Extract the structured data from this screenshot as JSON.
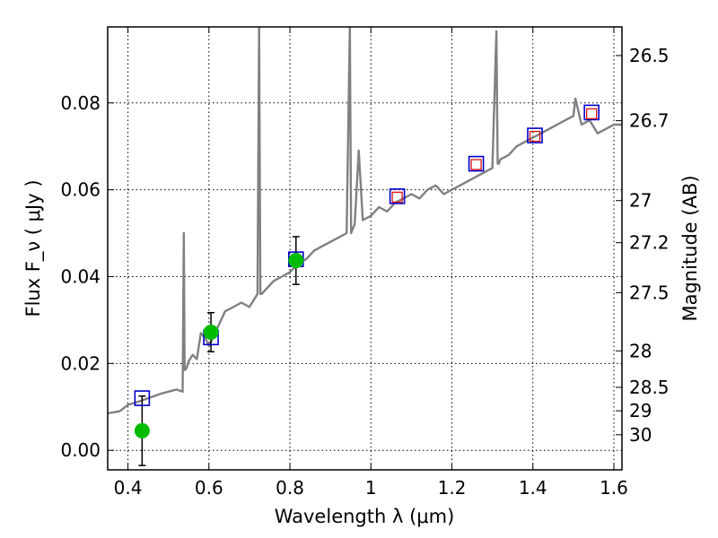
{
  "chart_data": {
    "type": "scatter",
    "xlabel": "Wavelength  λ (μm)",
    "ylabel": "Flux  F_ν  ( μJy )",
    "y2label": "Magnitude (AB)",
    "xlim": [
      0.35,
      1.62
    ],
    "ylim": [
      -0.0045,
      0.0975
    ],
    "grid": true,
    "x_ticks": [
      {
        "value": 0.4,
        "label": "0.4"
      },
      {
        "value": 0.6,
        "label": "0.6"
      },
      {
        "value": 0.8,
        "label": "0.8"
      },
      {
        "value": 1.0,
        "label": "1"
      },
      {
        "value": 1.2,
        "label": "1.2"
      },
      {
        "value": 1.4,
        "label": "1.4"
      },
      {
        "value": 1.6,
        "label": "1.6"
      }
    ],
    "y_ticks": [
      {
        "value": 0.0,
        "label": "0.00"
      },
      {
        "value": 0.02,
        "label": "0.02"
      },
      {
        "value": 0.04,
        "label": "0.04"
      },
      {
        "value": 0.06,
        "label": "0.06"
      },
      {
        "value": 0.08,
        "label": "0.08"
      }
    ],
    "y2_ticks": [
      {
        "flux": 0.0909,
        "label": "26.5"
      },
      {
        "flux": 0.0759,
        "label": "26.7"
      },
      {
        "flux": 0.0575,
        "label": "27"
      },
      {
        "flux": 0.0478,
        "label": "27.2"
      },
      {
        "flux": 0.0363,
        "label": "27.5"
      },
      {
        "flux": 0.0229,
        "label": "28"
      },
      {
        "flux": 0.0145,
        "label": "28.5"
      },
      {
        "flux": 0.0091,
        "label": "29"
      },
      {
        "flux": 0.0036,
        "label": "30"
      }
    ],
    "colors": {
      "sed": "#808080",
      "observed": "#00bb00",
      "model_blue": "#0000cc",
      "model_red": "#dd0000",
      "errorbar": "#000000"
    },
    "series": [
      {
        "type": "line",
        "x": [
          0.35,
          0.38,
          0.4,
          0.42,
          0.45,
          0.48,
          0.5,
          0.52,
          0.535,
          0.538,
          0.54,
          0.541,
          0.545,
          0.55,
          0.56,
          0.57,
          0.58,
          0.59,
          0.6,
          0.62,
          0.64,
          0.66,
          0.68,
          0.7,
          0.72,
          0.724,
          0.727,
          0.73,
          0.74,
          0.76,
          0.78,
          0.8,
          0.82,
          0.84,
          0.86,
          0.88,
          0.9,
          0.92,
          0.94,
          0.948,
          0.951,
          0.955,
          0.96,
          0.97,
          0.98,
          1.0,
          1.02,
          1.04,
          1.06,
          1.08,
          1.1,
          1.12,
          1.14,
          1.16,
          1.18,
          1.2,
          1.22,
          1.24,
          1.26,
          1.28,
          1.3,
          1.31,
          1.313,
          1.316,
          1.32,
          1.34,
          1.36,
          1.38,
          1.4,
          1.42,
          1.44,
          1.46,
          1.48,
          1.5,
          1.505,
          1.51,
          1.52,
          1.54,
          1.56,
          1.58,
          1.6,
          1.62
        ],
        "y": [
          0.0085,
          0.009,
          0.0105,
          0.011,
          0.012,
          0.013,
          0.0135,
          0.014,
          0.0135,
          0.05,
          0.0185,
          0.0185,
          0.019,
          0.0205,
          0.022,
          0.021,
          0.027,
          0.026,
          0.024,
          0.028,
          0.032,
          0.033,
          0.034,
          0.033,
          0.036,
          0.0975,
          0.036,
          0.036,
          0.037,
          0.039,
          0.04,
          0.041,
          0.043,
          0.044,
          0.046,
          0.047,
          0.048,
          0.049,
          0.05,
          0.0975,
          0.05,
          0.051,
          0.052,
          0.069,
          0.053,
          0.054,
          0.056,
          0.055,
          0.057,
          0.058,
          0.059,
          0.058,
          0.06,
          0.061,
          0.059,
          0.06,
          0.061,
          0.062,
          0.063,
          0.064,
          0.065,
          0.0965,
          0.066,
          0.066,
          0.067,
          0.068,
          0.07,
          0.071,
          0.072,
          0.073,
          0.074,
          0.075,
          0.076,
          0.077,
          0.081,
          0.079,
          0.075,
          0.076,
          0.073,
          0.074,
          0.075,
          0.075
        ]
      },
      {
        "type": "scatter",
        "marker": "circle",
        "x": [
          0.435,
          0.605,
          0.815
        ],
        "y": [
          0.0045,
          0.0272,
          0.0437
        ],
        "yerr": [
          0.008,
          0.0045,
          0.0055
        ]
      },
      {
        "type": "scatter",
        "marker": "open-square-blue",
        "x": [
          0.435,
          0.605,
          0.815,
          1.065,
          1.26,
          1.405,
          1.545
        ],
        "y": [
          0.012,
          0.026,
          0.044,
          0.0585,
          0.066,
          0.0725,
          0.0778
        ]
      },
      {
        "type": "scatter",
        "marker": "open-square-red",
        "x": [
          1.065,
          1.26,
          1.405,
          1.545
        ],
        "y": [
          0.0583,
          0.0658,
          0.0723,
          0.0775
        ]
      }
    ]
  }
}
